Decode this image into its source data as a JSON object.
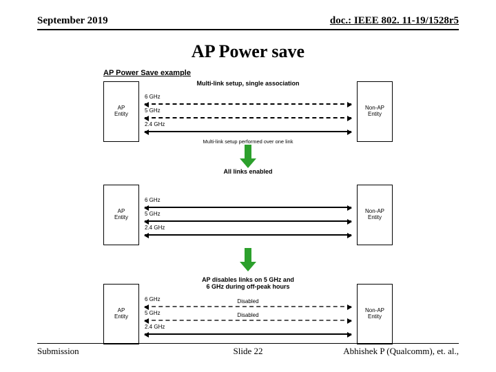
{
  "header": {
    "left": "September 2019",
    "right": "doc.: IEEE 802. 11-19/1528r5"
  },
  "title": "AP Power save",
  "footer": {
    "left": "Submission",
    "center": "Slide 22",
    "right": "Abhishek P (Qualcomm), et. al.,"
  },
  "diagram": {
    "title": "AP Power Save example",
    "ap_label": "AP\nEntity",
    "nonap_label": "Non-AP\nEntity",
    "stages": [
      {
        "caption_top": "Multi-link setup, single association",
        "links": [
          {
            "label": "6 GHz",
            "style": "dashed"
          },
          {
            "label": "5 GHz",
            "style": "dashed"
          },
          {
            "label": "2.4 GHz",
            "style": "solid"
          }
        ],
        "caption_bottom": "Multi-link setup performed over one link"
      },
      {
        "caption_top": "",
        "links": [
          {
            "label": "6 GHz",
            "style": "solid"
          },
          {
            "label": "5 GHz",
            "style": "solid"
          },
          {
            "label": "2.4 GHz",
            "style": "solid"
          }
        ],
        "caption_bottom": ""
      },
      {
        "caption_top": "AP disables links on 5 GHz and\n6 GHz during off-peak hours",
        "links": [
          {
            "label": "6 GHz",
            "style": "dashed-light",
            "overlay": "Disabled"
          },
          {
            "label": "5 GHz",
            "style": "dashed-light",
            "overlay": "Disabled"
          },
          {
            "label": "2.4 GHz",
            "style": "solid"
          }
        ],
        "caption_bottom": ""
      }
    ],
    "transitions": [
      {
        "label": "All links enabled"
      },
      {
        "label": ""
      }
    ],
    "colors": {
      "arrow_green": "#2ca02c",
      "line_black": "#000000",
      "dashed_light": "#555555",
      "bg": "#ffffff"
    }
  }
}
